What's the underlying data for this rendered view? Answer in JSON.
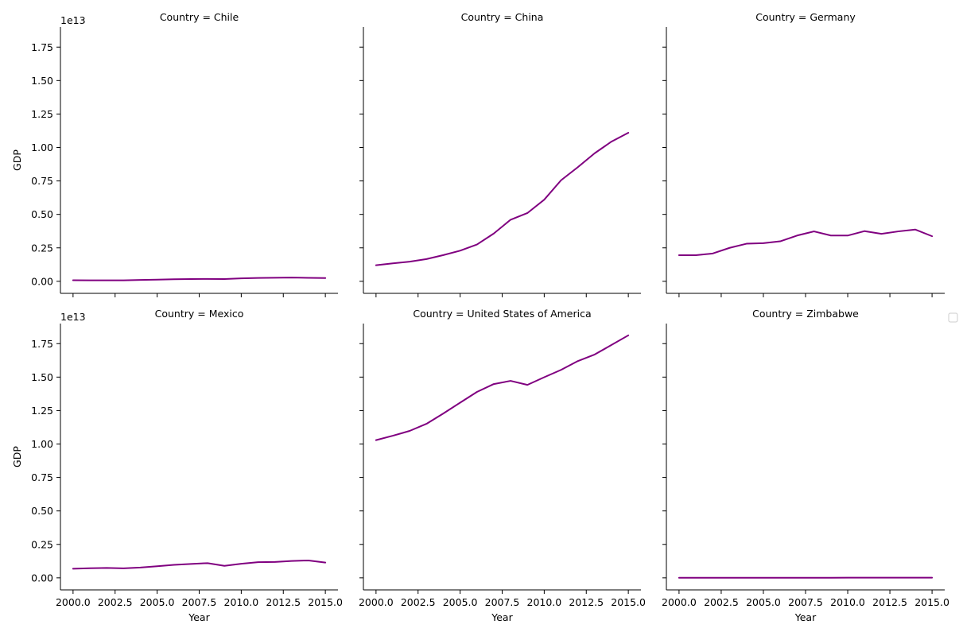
{
  "figure": {
    "line_color": "#800080"
  },
  "chart_data": [
    {
      "type": "line",
      "title": "Country = Chile",
      "xlabel": "",
      "ylabel": "GDP",
      "y_offset_label": "1e13",
      "xlim": [
        1999.25,
        2015.75
      ],
      "ylim": [
        -0.09,
        1.9
      ],
      "x": [
        2000,
        2001,
        2002,
        2003,
        2004,
        2005,
        2006,
        2007,
        2008,
        2009,
        2010,
        2011,
        2012,
        2013,
        2014,
        2015
      ],
      "series": [
        {
          "values": [
            0.0078,
            0.0071,
            0.007,
            0.0076,
            0.01,
            0.0123,
            0.0155,
            0.0173,
            0.018,
            0.0172,
            0.0218,
            0.0252,
            0.0267,
            0.0278,
            0.026,
            0.0243
          ]
        }
      ],
      "yticks": [
        "0.00",
        "0.25",
        "0.50",
        "0.75",
        "1.00",
        "1.25",
        "1.50",
        "1.75"
      ],
      "xticks": []
    },
    {
      "type": "line",
      "title": "Country = China",
      "xlabel": "",
      "ylabel": "",
      "y_offset_label": "",
      "xlim": [
        1999.25,
        2015.75
      ],
      "ylim": [
        -0.09,
        1.9
      ],
      "x": [
        2000,
        2001,
        2002,
        2003,
        2004,
        2005,
        2006,
        2007,
        2008,
        2009,
        2010,
        2011,
        2012,
        2013,
        2014,
        2015
      ],
      "series": [
        {
          "values": [
            0.12,
            0.134,
            0.147,
            0.166,
            0.196,
            0.229,
            0.275,
            0.357,
            0.46,
            0.51,
            0.61,
            0.755,
            0.853,
            0.957,
            1.044,
            1.11
          ]
        }
      ],
      "yticks": [],
      "xticks": []
    },
    {
      "type": "line",
      "title": "Country = Germany",
      "xlabel": "",
      "ylabel": "",
      "y_offset_label": "",
      "xlim": [
        1999.25,
        2015.75
      ],
      "ylim": [
        -0.09,
        1.9
      ],
      "x": [
        2000,
        2001,
        2002,
        2003,
        2004,
        2005,
        2006,
        2007,
        2008,
        2009,
        2010,
        2011,
        2012,
        2013,
        2014,
        2015
      ],
      "series": [
        {
          "values": [
            0.195,
            0.195,
            0.208,
            0.25,
            0.281,
            0.285,
            0.299,
            0.342,
            0.373,
            0.342,
            0.342,
            0.375,
            0.355,
            0.373,
            0.387,
            0.337
          ]
        }
      ],
      "yticks": [],
      "xticks": []
    },
    {
      "type": "line",
      "title": "Country = Mexico",
      "xlabel": "Year",
      "ylabel": "GDP",
      "y_offset_label": "1e13",
      "xlim": [
        1999.25,
        2015.75
      ],
      "ylim": [
        -0.09,
        1.9
      ],
      "x": [
        2000,
        2001,
        2002,
        2003,
        2004,
        2005,
        2006,
        2007,
        2008,
        2009,
        2010,
        2011,
        2012,
        2013,
        2014,
        2015
      ],
      "series": [
        {
          "values": [
            0.068,
            0.072,
            0.074,
            0.071,
            0.077,
            0.087,
            0.097,
            0.104,
            0.11,
            0.09,
            0.105,
            0.117,
            0.119,
            0.126,
            0.13,
            0.114
          ]
        }
      ],
      "yticks": [
        "0.00",
        "0.25",
        "0.50",
        "0.75",
        "1.00",
        "1.25",
        "1.50",
        "1.75"
      ],
      "xticks": [
        "2000.0",
        "2002.5",
        "2005.0",
        "2007.5",
        "2010.0",
        "2012.5",
        "2015.0"
      ]
    },
    {
      "type": "line",
      "title": "Country = United States of America",
      "xlabel": "Year",
      "ylabel": "",
      "y_offset_label": "",
      "xlim": [
        1999.25,
        2015.75
      ],
      "ylim": [
        -0.09,
        1.9
      ],
      "x": [
        2000,
        2001,
        2002,
        2003,
        2004,
        2005,
        2006,
        2007,
        2008,
        2009,
        2010,
        2011,
        2012,
        2013,
        2014,
        2015
      ],
      "series": [
        {
          "values": [
            1.029,
            1.062,
            1.098,
            1.151,
            1.228,
            1.309,
            1.389,
            1.448,
            1.472,
            1.442,
            1.499,
            1.554,
            1.62,
            1.669,
            1.74,
            1.812
          ]
        }
      ],
      "yticks": [],
      "xticks": [
        "2000.0",
        "2002.5",
        "2005.0",
        "2007.5",
        "2010.0",
        "2012.5",
        "2015.0"
      ]
    },
    {
      "type": "line",
      "title": "Country = Zimbabwe",
      "xlabel": "Year",
      "ylabel": "",
      "y_offset_label": "",
      "xlim": [
        1999.25,
        2015.75
      ],
      "ylim": [
        -0.09,
        1.9
      ],
      "x": [
        2000,
        2001,
        2002,
        2003,
        2004,
        2005,
        2006,
        2007,
        2008,
        2009,
        2010,
        2011,
        2012,
        2013,
        2014,
        2015
      ],
      "series": [
        {
          "values": [
            0.0007,
            0.0007,
            0.0006,
            0.0006,
            0.0006,
            0.0006,
            0.0005,
            0.0005,
            0.0004,
            0.0008,
            0.001,
            0.0012,
            0.0014,
            0.0015,
            0.0016,
            0.0016
          ]
        }
      ],
      "yticks": [],
      "xticks": [
        "2000.0",
        "2002.5",
        "2005.0",
        "2007.5",
        "2010.0",
        "2012.5",
        "2015.0"
      ]
    }
  ]
}
